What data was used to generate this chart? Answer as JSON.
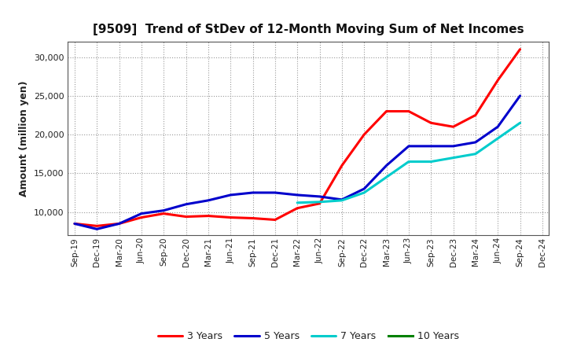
{
  "title": "[9509]  Trend of StDev of 12-Month Moving Sum of Net Incomes",
  "ylabel": "Amount (million yen)",
  "background_color": "#ffffff",
  "plot_bg_color": "#ffffff",
  "grid_color": "#999999",
  "ylim": [
    7000,
    32000
  ],
  "yticks": [
    10000,
    15000,
    20000,
    25000,
    30000
  ],
  "x_labels": [
    "Sep-19",
    "Dec-19",
    "Mar-20",
    "Jun-20",
    "Sep-20",
    "Dec-20",
    "Mar-21",
    "Jun-21",
    "Sep-21",
    "Dec-21",
    "Mar-22",
    "Jun-22",
    "Sep-22",
    "Dec-22",
    "Mar-23",
    "Jun-23",
    "Sep-23",
    "Dec-23",
    "Mar-24",
    "Jun-24",
    "Sep-24",
    "Dec-24"
  ],
  "series": {
    "3 Years": {
      "color": "#ff0000",
      "linewidth": 2.2,
      "data": [
        8500,
        8200,
        8500,
        9300,
        9800,
        9400,
        9500,
        9300,
        9200,
        9000,
        10500,
        11100,
        16000,
        20000,
        23000,
        23000,
        21500,
        21000,
        22500,
        27000,
        31000,
        null
      ]
    },
    "5 Years": {
      "color": "#0000cc",
      "linewidth": 2.2,
      "data": [
        8500,
        7800,
        8500,
        9800,
        10200,
        11000,
        11500,
        12200,
        12500,
        12500,
        12200,
        12000,
        11600,
        13000,
        16000,
        18500,
        18500,
        18500,
        19000,
        21000,
        25000,
        null
      ]
    },
    "7 Years": {
      "color": "#00cccc",
      "linewidth": 2.2,
      "data": [
        null,
        null,
        null,
        null,
        null,
        null,
        null,
        null,
        null,
        null,
        11200,
        11300,
        11500,
        12500,
        14500,
        16500,
        16500,
        17000,
        17500,
        19500,
        21500,
        null
      ]
    },
    "10 Years": {
      "color": "#008000",
      "linewidth": 2.2,
      "data": [
        null,
        null,
        null,
        null,
        null,
        null,
        null,
        null,
        null,
        null,
        null,
        null,
        null,
        null,
        null,
        null,
        null,
        null,
        null,
        null,
        null,
        null
      ]
    }
  },
  "legend_order": [
    "3 Years",
    "5 Years",
    "7 Years",
    "10 Years"
  ]
}
